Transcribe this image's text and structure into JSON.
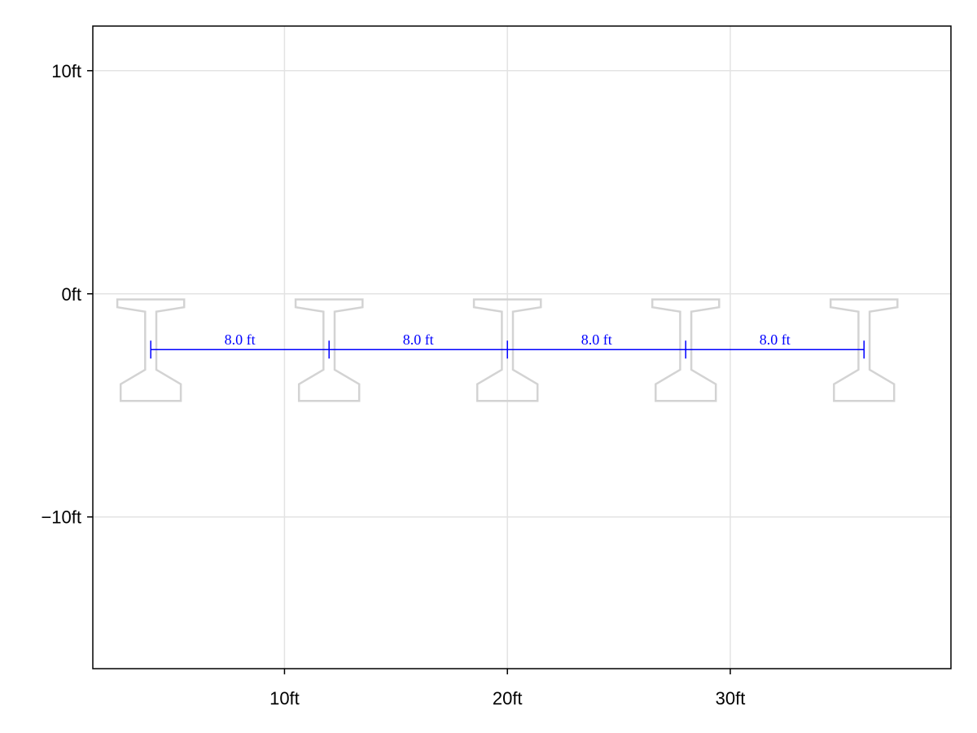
{
  "chart_data": {
    "type": "diagram",
    "title": "",
    "xlabel": "",
    "ylabel": "",
    "xlim": [
      1.4,
      39.9
    ],
    "ylim": [
      -16.8,
      12.0
    ],
    "grid": true,
    "x_ticks": [
      {
        "value": 10,
        "label": "10ft"
      },
      {
        "value": 20,
        "label": "20ft"
      },
      {
        "value": 30,
        "label": "30ft"
      }
    ],
    "y_ticks": [
      {
        "value": 10,
        "label": "10ft"
      },
      {
        "value": 0,
        "label": "0ft"
      },
      {
        "value": -10,
        "label": "−10ft"
      }
    ],
    "girders": {
      "centers_x": [
        4,
        12,
        20,
        28,
        36
      ],
      "top_y": -0.25,
      "profile": [
        [
          -1.5,
          -0.25
        ],
        [
          1.5,
          -0.25
        ],
        [
          1.5,
          -0.6
        ],
        [
          0.25,
          -0.8
        ],
        [
          0.25,
          -3.4
        ],
        [
          1.35,
          -4.05
        ],
        [
          1.35,
          -4.8
        ],
        [
          -1.35,
          -4.8
        ],
        [
          -1.35,
          -4.05
        ],
        [
          -0.25,
          -3.4
        ],
        [
          -0.25,
          -0.8
        ],
        [
          -1.5,
          -0.6
        ]
      ],
      "color": "#d3d3d3"
    },
    "dimension_line": {
      "y": -2.5,
      "points_x": [
        4,
        12,
        20,
        28,
        36
      ],
      "labels": [
        "8.0 ft",
        "8.0 ft",
        "8.0 ft",
        "8.0 ft"
      ],
      "color": "#0000ff"
    }
  }
}
